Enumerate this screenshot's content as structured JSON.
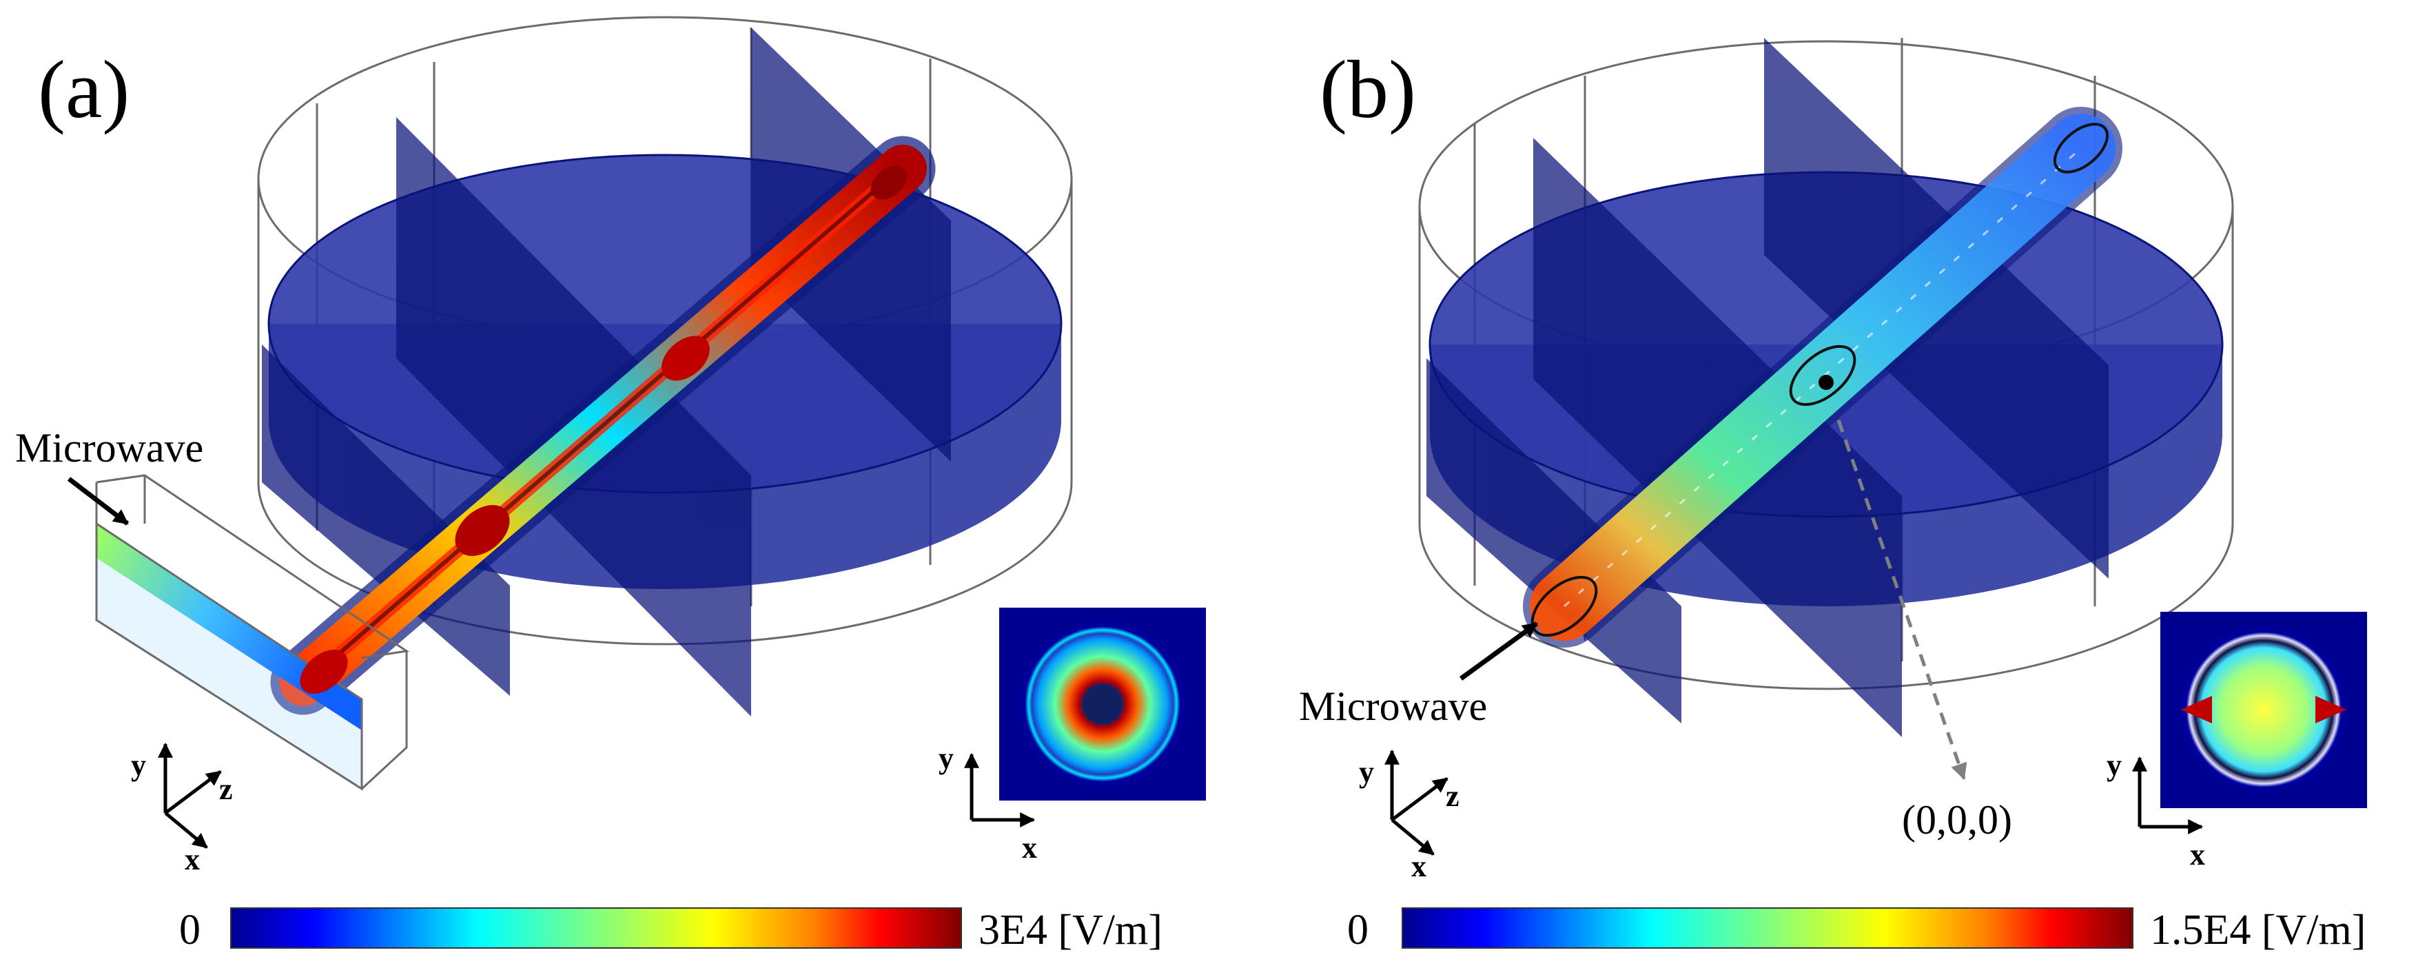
{
  "panels": [
    {
      "label": "(a)",
      "annotation_microwave": "Microwave",
      "main_axes": {
        "y": "y",
        "z": "z",
        "x": "x"
      },
      "inset_axes": {
        "y": "y",
        "x": "x"
      },
      "colorbar": {
        "min_label": "0",
        "max_label": "3E4 [V/m]"
      }
    },
    {
      "label": "(b)",
      "annotation_microwave": "Microwave",
      "annotation_origin": "(0,0,0)",
      "main_axes": {
        "y": "y",
        "z": "z",
        "x": "x"
      },
      "inset_axes": {
        "y": "y",
        "x": "x"
      },
      "colorbar": {
        "min_label": "0",
        "max_label": "1.5E4 [V/m]"
      }
    }
  ],
  "colormap": [
    "#00008f",
    "#0000ff",
    "#0080ff",
    "#00ffff",
    "#80ff80",
    "#ffff00",
    "#ff8000",
    "#ff0000",
    "#800000"
  ],
  "colors": {
    "disk": "#1f2a9a",
    "plane": "#0a1478",
    "outline": "#6b6b6b"
  }
}
